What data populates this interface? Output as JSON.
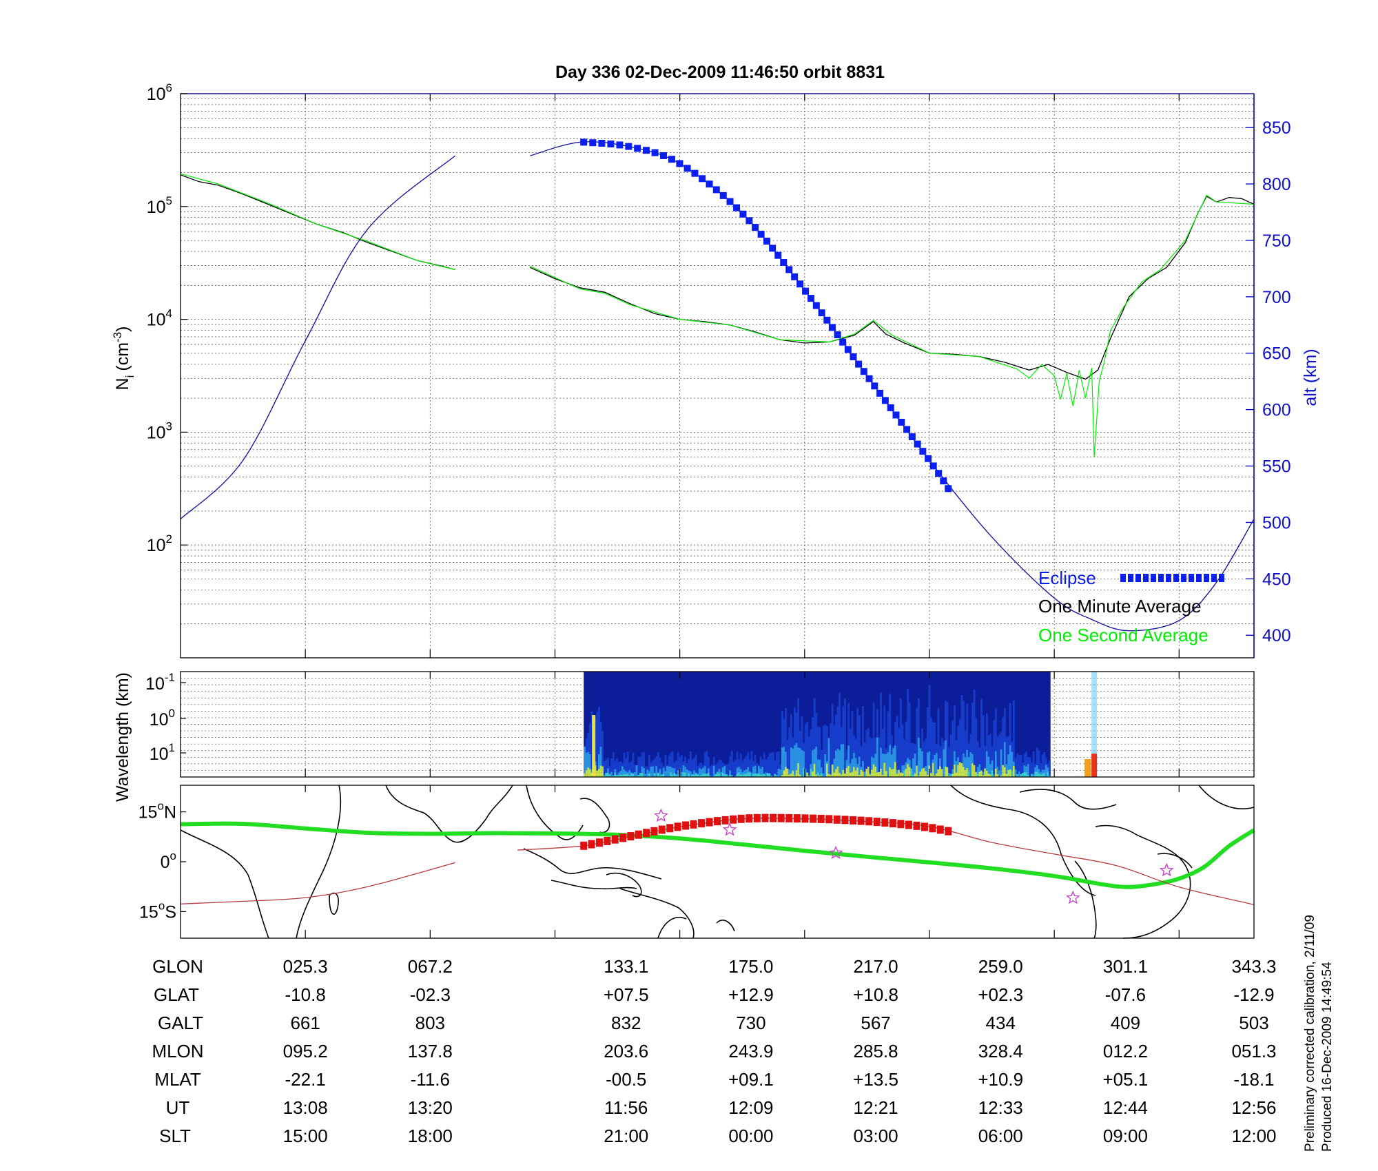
{
  "title": "Day 336  02-Dec-2009 11:46:50   orbit 8831",
  "colors": {
    "alt_axis": "#1010c8",
    "alt_line": "#1a1aa0",
    "eclipse": "#0a1ef0",
    "minute_avg": "#000000",
    "second_avg": "#00ee00",
    "ground_track": "#22dd22",
    "mag_track": "#b43c3c",
    "mag_eclipse": "#e01010",
    "star": "#cc44cc",
    "grid": "#555555"
  },
  "chart_data": [
    {
      "type": "line",
      "name": "density",
      "ylabel_left": "N",
      "ylabel_left_sub": "i",
      "ylabel_left_unit": "(cm",
      "ylabel_left_unit_sup": "-3",
      "ylabel_left_unit_end": ")",
      "ylabel_right": "alt (km)",
      "xlim": [
        0,
        8.6
      ],
      "ylim_log": [
        1,
        6
      ],
      "y_scale": "log",
      "y_ticks": [
        {
          "base": "10",
          "exp": "6",
          "value": 6
        },
        {
          "base": "10",
          "exp": "5",
          "value": 5
        },
        {
          "base": "10",
          "exp": "4",
          "value": 4
        },
        {
          "base": "10",
          "exp": "3",
          "value": 3
        },
        {
          "base": "10",
          "exp": "2",
          "value": 2
        }
      ],
      "alt_ylim": [
        380,
        880
      ],
      "alt_ticks": [
        "850",
        "800",
        "750",
        "700",
        "650",
        "600",
        "550",
        "500",
        "450",
        "400"
      ],
      "legend": {
        "placement": "bottom-right",
        "eclipse": "Eclipse",
        "minute": "One Minute Average",
        "second": "One Second Average"
      },
      "altitude_segments": [
        [
          [
            0.0,
            503
          ],
          [
            0.5,
            555
          ],
          [
            1.0,
            661
          ],
          [
            1.5,
            760
          ],
          [
            2.2,
            825
          ]
        ],
        [
          [
            2.8,
            825
          ],
          [
            3.2,
            837
          ],
          [
            3.6,
            833
          ],
          [
            4.0,
            818
          ],
          [
            4.5,
            774
          ],
          [
            5.0,
            706
          ],
          [
            5.5,
            630
          ],
          [
            6.0,
            555
          ],
          [
            6.5,
            487
          ],
          [
            7.0,
            433
          ],
          [
            7.3,
            414
          ],
          [
            7.6,
            404
          ],
          [
            8.0,
            413
          ],
          [
            8.3,
            447
          ],
          [
            8.6,
            503
          ]
        ]
      ],
      "eclipse_segment": [
        [
          3.23,
          837
        ],
        [
          3.6,
          833
        ],
        [
          4.0,
          818
        ],
        [
          4.5,
          774
        ],
        [
          5.0,
          706
        ],
        [
          5.5,
          630
        ],
        [
          6.0,
          555
        ],
        [
          6.15,
          530
        ]
      ],
      "minute_average_segments": [
        [
          [
            0.0,
            5.28
          ],
          [
            0.15,
            5.22
          ],
          [
            0.3,
            5.19
          ],
          [
            0.5,
            5.11
          ],
          [
            0.7,
            5.02
          ],
          [
            0.9,
            4.93
          ],
          [
            1.1,
            4.84
          ],
          [
            1.3,
            4.77
          ],
          [
            1.5,
            4.68
          ],
          [
            1.7,
            4.6
          ],
          [
            1.9,
            4.52
          ],
          [
            2.1,
            4.47
          ],
          [
            2.2,
            4.44
          ]
        ],
        [
          [
            2.8,
            4.46
          ],
          [
            3.0,
            4.36
          ],
          [
            3.2,
            4.28
          ],
          [
            3.4,
            4.24
          ],
          [
            3.6,
            4.14
          ],
          [
            3.8,
            4.05
          ],
          [
            4.0,
            4.0
          ],
          [
            4.2,
            3.98
          ],
          [
            4.4,
            3.95
          ],
          [
            4.6,
            3.89
          ],
          [
            4.8,
            3.82
          ],
          [
            5.0,
            3.79
          ],
          [
            5.2,
            3.8
          ],
          [
            5.4,
            3.86
          ],
          [
            5.55,
            3.98
          ],
          [
            5.65,
            3.87
          ],
          [
            5.8,
            3.79
          ],
          [
            6.0,
            3.7
          ],
          [
            6.2,
            3.69
          ],
          [
            6.4,
            3.67
          ],
          [
            6.6,
            3.62
          ],
          [
            6.8,
            3.55
          ],
          [
            6.95,
            3.6
          ],
          [
            7.1,
            3.53
          ],
          [
            7.25,
            3.47
          ],
          [
            7.35,
            3.55
          ],
          [
            7.45,
            3.83
          ],
          [
            7.6,
            4.2
          ],
          [
            7.75,
            4.36
          ],
          [
            7.9,
            4.46
          ],
          [
            8.05,
            4.68
          ],
          [
            8.15,
            4.94
          ],
          [
            8.22,
            5.09
          ],
          [
            8.3,
            5.04
          ],
          [
            8.4,
            5.08
          ],
          [
            8.5,
            5.07
          ],
          [
            8.6,
            5.02
          ]
        ]
      ],
      "second_average_segments": [
        [
          [
            0.0,
            5.29
          ],
          [
            0.3,
            5.2
          ],
          [
            0.7,
            5.03
          ],
          [
            1.1,
            4.84
          ],
          [
            1.5,
            4.69
          ],
          [
            1.9,
            4.52
          ],
          [
            2.2,
            4.44
          ]
        ],
        [
          [
            2.8,
            4.47
          ],
          [
            3.2,
            4.27
          ],
          [
            3.4,
            4.23
          ],
          [
            3.6,
            4.13
          ],
          [
            4.0,
            4.0
          ],
          [
            4.4,
            3.95
          ],
          [
            4.8,
            3.82
          ],
          [
            5.2,
            3.8
          ],
          [
            5.4,
            3.87
          ],
          [
            5.55,
            3.99
          ],
          [
            5.7,
            3.86
          ],
          [
            6.0,
            3.7
          ],
          [
            6.4,
            3.67
          ],
          [
            6.7,
            3.56
          ],
          [
            6.8,
            3.48
          ],
          [
            6.9,
            3.6
          ],
          [
            7.0,
            3.5
          ],
          [
            7.05,
            3.29
          ],
          [
            7.1,
            3.52
          ],
          [
            7.15,
            3.23
          ],
          [
            7.2,
            3.55
          ],
          [
            7.25,
            3.3
          ],
          [
            7.3,
            3.57
          ],
          [
            7.32,
            2.78
          ],
          [
            7.36,
            3.45
          ],
          [
            7.4,
            3.62
          ],
          [
            7.45,
            3.9
          ],
          [
            7.55,
            4.1
          ],
          [
            7.7,
            4.33
          ],
          [
            7.85,
            4.44
          ],
          [
            8.05,
            4.7
          ],
          [
            8.22,
            5.1
          ],
          [
            8.3,
            5.04
          ],
          [
            8.6,
            5.02
          ]
        ]
      ]
    },
    {
      "type": "heatmap",
      "name": "wavelength-spectrogram",
      "ylabel": "Wavelength (km)",
      "y_ticks": [
        {
          "base": "10",
          "exp": "-1"
        },
        {
          "base": "10",
          "exp": "0"
        },
        {
          "base": "10",
          "exp": "1"
        }
      ],
      "x_extent": [
        3.23,
        6.97
      ]
    },
    {
      "type": "line",
      "name": "ground-track-map",
      "lat_range": [
        -23,
        23
      ],
      "y_ticks": [
        {
          "num": "15",
          "deg": "o",
          "hemi": "N",
          "lat": 15
        },
        {
          "num": "0",
          "deg": "o",
          "hemi": "",
          "lat": 0
        },
        {
          "num": "15",
          "deg": "o",
          "hemi": "S",
          "lat": -15
        }
      ],
      "magnetic_equator_track": [
        [
          0.0,
          11.3
        ],
        [
          0.5,
          11.4
        ],
        [
          1.0,
          10.0
        ],
        [
          1.5,
          8.7
        ],
        [
          2.0,
          8.4
        ],
        [
          2.5,
          8.6
        ],
        [
          3.0,
          8.5
        ],
        [
          3.5,
          8.1
        ],
        [
          4.0,
          7.0
        ],
        [
          4.5,
          5.2
        ],
        [
          5.0,
          3.3
        ],
        [
          5.5,
          1.5
        ],
        [
          6.0,
          -0.2
        ],
        [
          6.5,
          -2.0
        ],
        [
          7.0,
          -4.3
        ],
        [
          7.4,
          -6.9
        ],
        [
          7.6,
          -7.6
        ],
        [
          7.8,
          -6.8
        ],
        [
          8.0,
          -5.1
        ],
        [
          8.2,
          -1.6
        ],
        [
          8.4,
          4.7
        ],
        [
          8.6,
          9.5
        ]
      ],
      "orbit_track_segments": [
        [
          [
            0.0,
            -12.7
          ],
          [
            0.5,
            -11.9
          ],
          [
            1.0,
            -10.8
          ],
          [
            1.5,
            -7.5
          ],
          [
            2.2,
            -0.3
          ]
        ],
        [
          [
            2.7,
            3.5
          ],
          [
            3.23,
            4.8
          ],
          [
            3.6,
            7.5
          ],
          [
            4.0,
            10.5
          ],
          [
            4.5,
            12.9
          ],
          [
            5.0,
            12.9
          ],
          [
            5.5,
            12.1
          ],
          [
            6.0,
            10.6
          ],
          [
            6.5,
            5.8
          ],
          [
            7.0,
            2.3
          ],
          [
            7.5,
            -1.2
          ],
          [
            8.0,
            -7.6
          ],
          [
            8.6,
            -12.9
          ]
        ]
      ],
      "orbit_eclipse_segment": [
        [
          3.23,
          4.8
        ],
        [
          3.6,
          7.6
        ],
        [
          4.0,
          10.6
        ],
        [
          4.5,
          12.9
        ],
        [
          5.0,
          13.0
        ],
        [
          5.5,
          12.2
        ],
        [
          5.9,
          10.8
        ],
        [
          6.15,
          9.2
        ]
      ],
      "stars": [
        [
          3.85,
          13.8
        ],
        [
          4.4,
          9.6
        ],
        [
          5.25,
          2.6
        ],
        [
          7.15,
          -10.9
        ],
        [
          7.9,
          -2.6
        ]
      ]
    }
  ],
  "ephemeris": {
    "row_labels": [
      "GLON",
      "GLAT",
      "GALT",
      "MLON",
      "MLAT",
      "UT",
      "SLT"
    ],
    "columns": [
      {
        "x": 1.0,
        "values": [
          "025.3",
          "-10.8",
          "661",
          "095.2",
          "-22.1",
          "13:08",
          "15:00"
        ]
      },
      {
        "x": 2.0,
        "values": [
          "067.2",
          "-02.3",
          "803",
          "137.8",
          "-11.6",
          "13:20",
          "18:00"
        ]
      },
      {
        "x": 3.57,
        "values": [
          "133.1",
          "+07.5",
          "832",
          "203.6",
          "-00.5",
          "11:56",
          "21:00"
        ]
      },
      {
        "x": 4.57,
        "values": [
          "175.0",
          "+12.9",
          "730",
          "243.9",
          "+09.1",
          "12:09",
          "00:00"
        ]
      },
      {
        "x": 5.57,
        "values": [
          "217.0",
          "+10.8",
          "567",
          "285.8",
          "+13.5",
          "12:21",
          "03:00"
        ]
      },
      {
        "x": 6.57,
        "values": [
          "259.0",
          "+02.3",
          "434",
          "328.4",
          "+10.9",
          "12:33",
          "06:00"
        ]
      },
      {
        "x": 7.57,
        "values": [
          "301.1",
          "-07.6",
          "409",
          "012.2",
          "+05.1",
          "12:44",
          "09:00"
        ]
      },
      {
        "x": 8.6,
        "values": [
          "343.3",
          "-12.9",
          "503",
          "051.3",
          "-18.1",
          "12:56",
          "12:00"
        ]
      }
    ]
  },
  "footer": {
    "line1": "Preliminary corrected calibration, 2/11/09",
    "line2": "Produced 16-Dec-2009 14:49:54"
  }
}
